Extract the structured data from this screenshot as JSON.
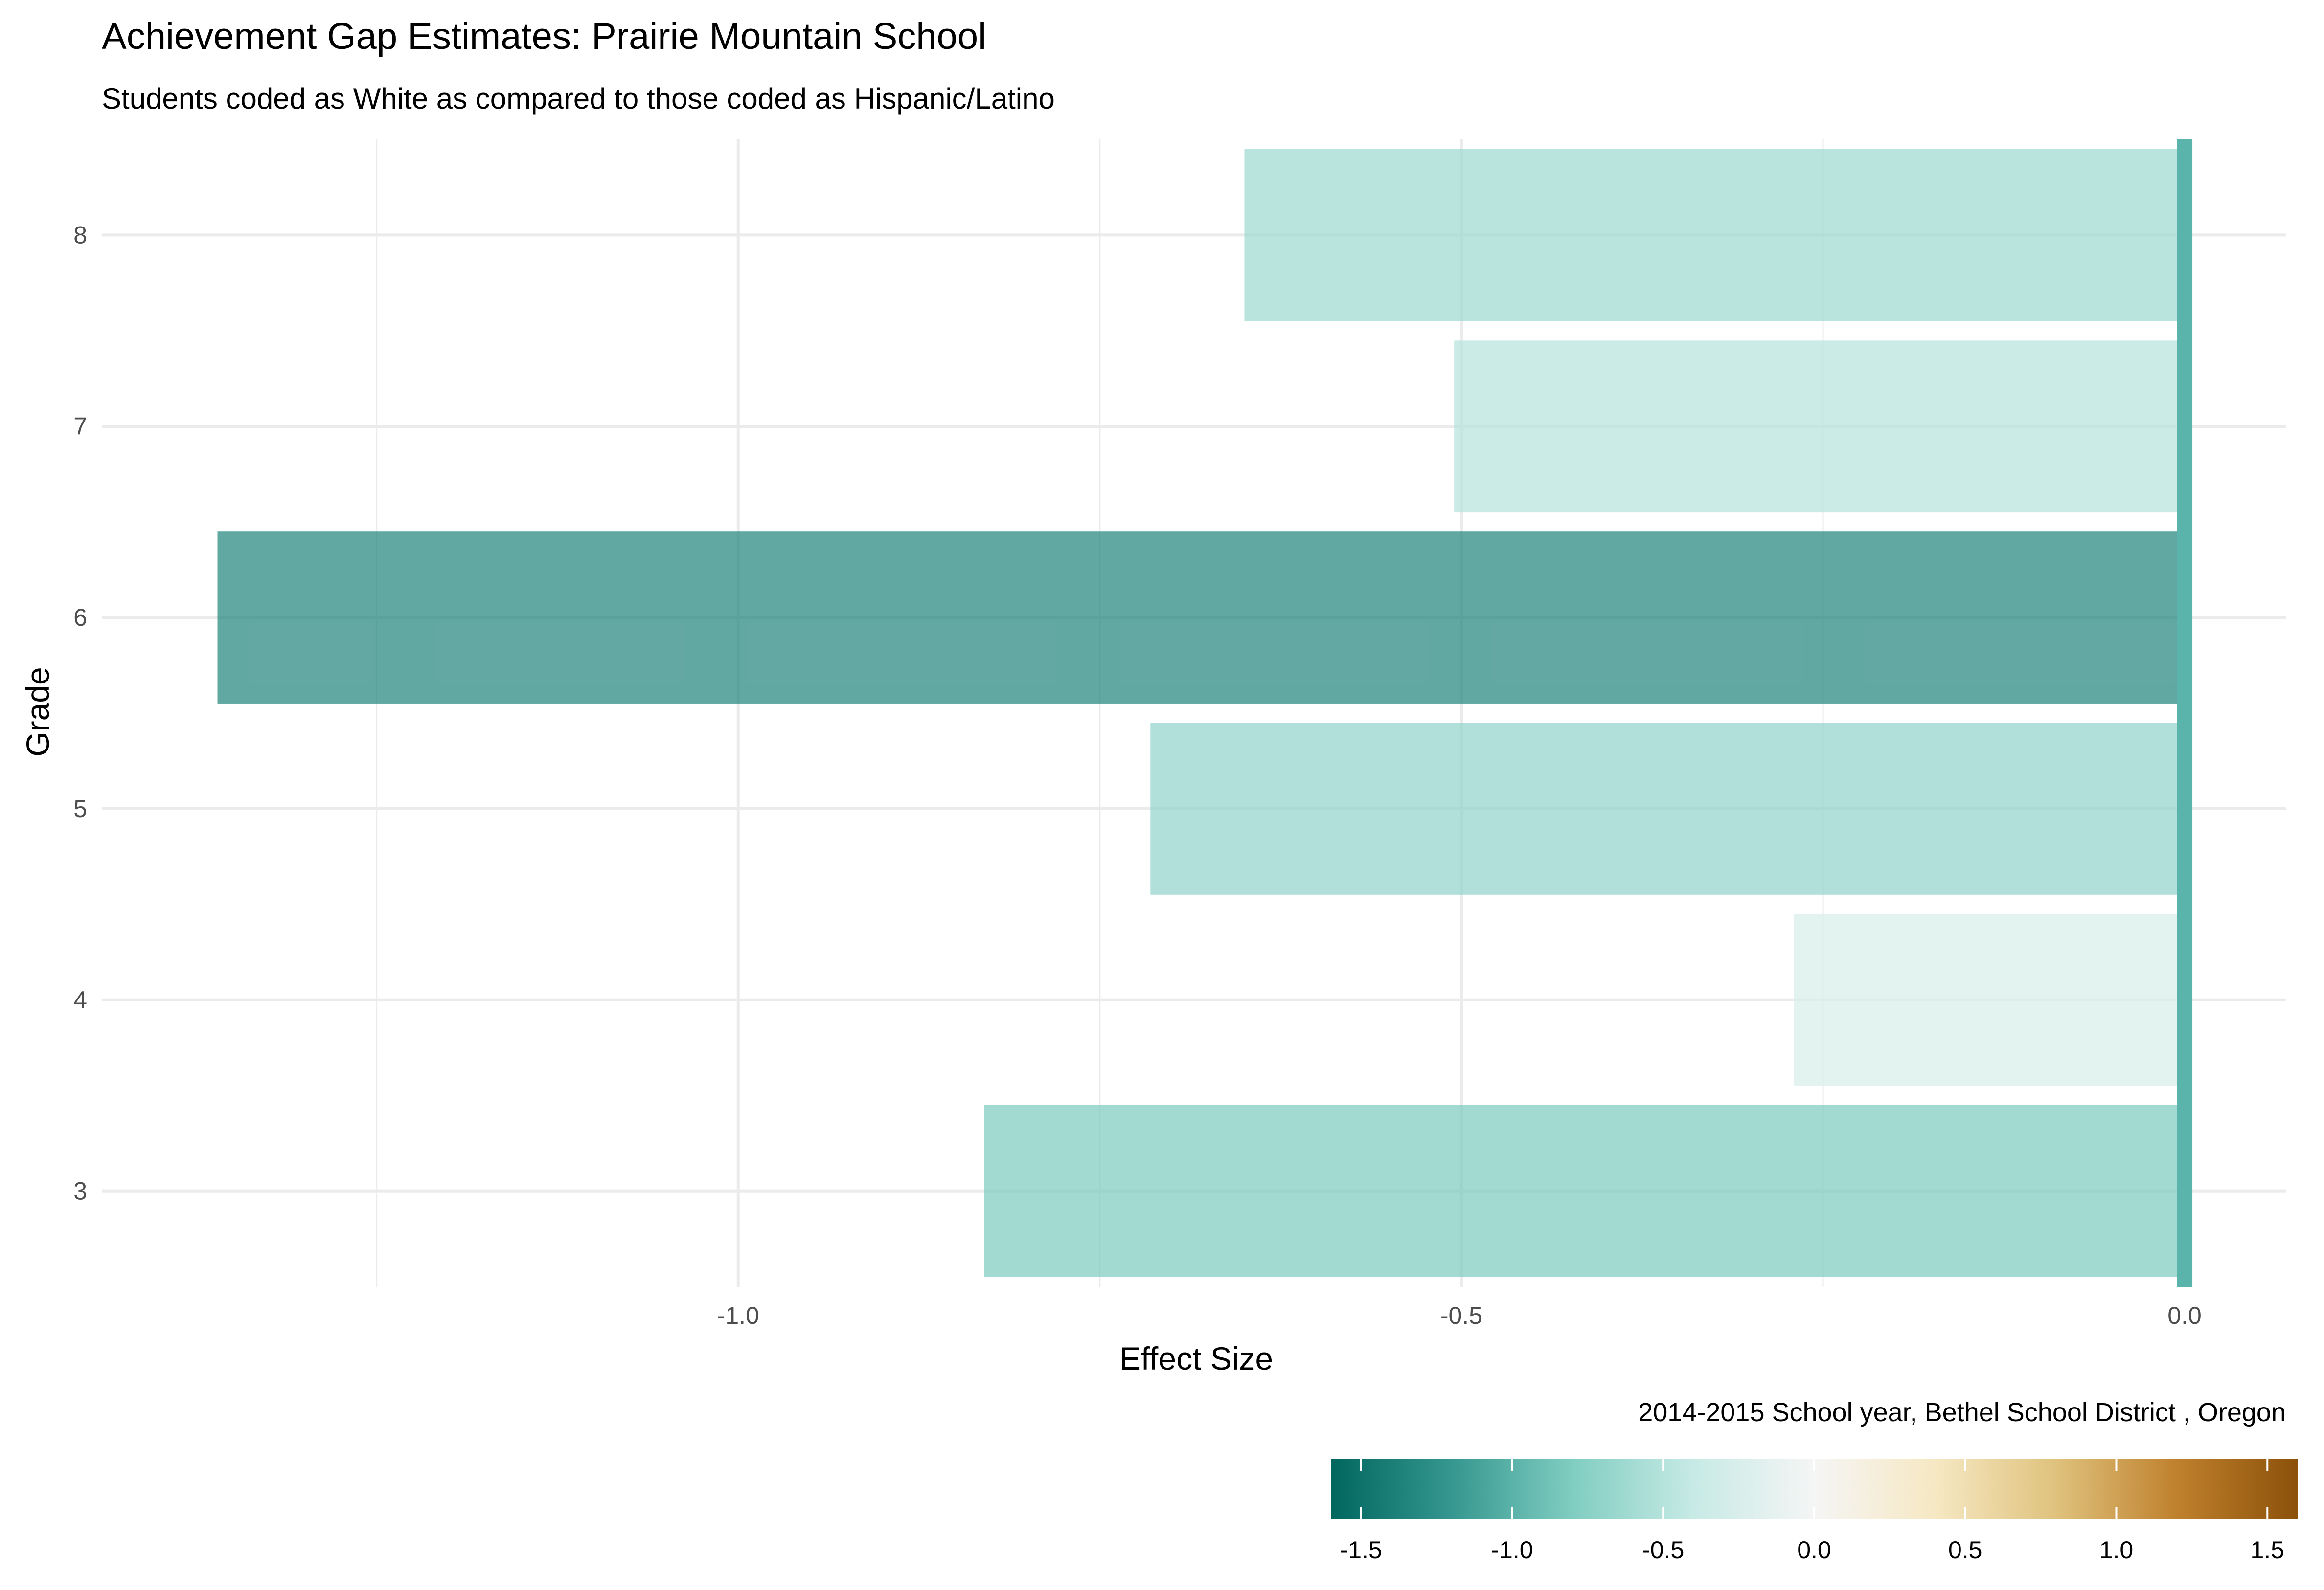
{
  "chart_data": {
    "type": "bar",
    "orientation": "horizontal",
    "title": "Achievement Gap Estimates: Prairie Mountain School",
    "subtitle": "Students coded as White as compared to those coded as Hispanic/Latino",
    "xlabel": "Effect Size",
    "ylabel": "Grade",
    "caption": "2014-2015 School year,  Bethel School District , Oregon",
    "categories": [
      "3",
      "4",
      "5",
      "6",
      "7",
      "8"
    ],
    "values": [
      -0.83,
      -0.27,
      -0.715,
      -1.36,
      -0.505,
      -0.65
    ],
    "xlim": [
      -1.44,
      0.07
    ],
    "x_ticks": [
      "-1.0",
      "-0.5",
      "0.0"
    ],
    "x_tick_values": [
      -1.0,
      -0.5,
      0.0
    ],
    "reference_line": 0.0,
    "grid": true,
    "legend": {
      "type": "colorbar",
      "position": "bottom-right",
      "range": [
        -1.6,
        1.6
      ],
      "ticks": [
        "-1.5",
        "-1.0",
        "-0.5",
        "0.0",
        "0.5",
        "1.0",
        "1.5"
      ],
      "tick_values": [
        -1.5,
        -1.0,
        -0.5,
        0.0,
        0.5,
        1.0,
        1.5
      ],
      "colors": [
        "#01665e",
        "#35978f",
        "#80cdc1",
        "#c7eae5",
        "#f5f5f5",
        "#f6e8c3",
        "#dfc27d",
        "#bf812d",
        "#8c510a"
      ]
    },
    "colors": {
      "reference_line": "#5ab4ac",
      "grid": "#ebebeb"
    }
  }
}
